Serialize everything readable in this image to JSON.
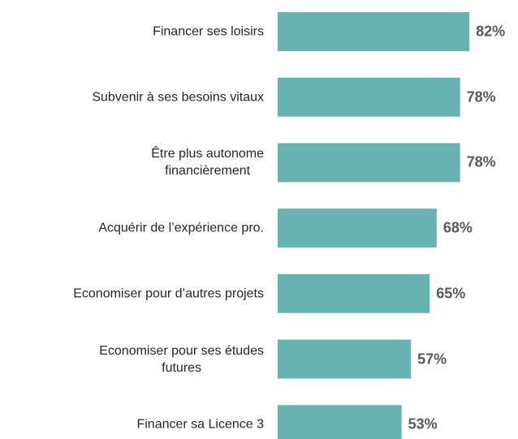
{
  "chart_data": {
    "type": "bar",
    "orientation": "horizontal",
    "categories": [
      "Financer ses loisirs",
      "Subvenir à ses besoins vitaux",
      "Être plus autonome\nfinancièrement",
      "Acquérir de l’expérience pro.",
      "Economiser pour d’autres projets",
      "Economiser pour ses études\nfutures",
      "Financer sa Licence 3"
    ],
    "values": [
      82,
      78,
      78,
      68,
      65,
      57,
      53
    ],
    "value_labels": [
      "82%",
      "78%",
      "78%",
      "68%",
      "65%",
      "57%",
      "53%"
    ],
    "color": "#67b3b2"
  }
}
